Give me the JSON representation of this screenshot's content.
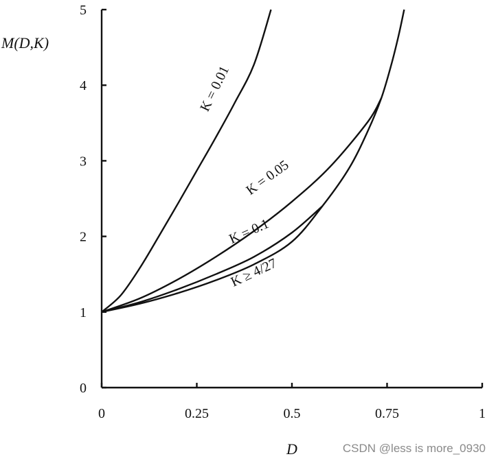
{
  "chart_data": {
    "type": "line",
    "title": "",
    "xlabel": "D",
    "ylabel": "M(D,K)",
    "xlim": [
      0,
      1
    ],
    "ylim": [
      0,
      5
    ],
    "x_ticks": [
      {
        "value": 0,
        "label": "0"
      },
      {
        "value": 0.25,
        "label": "0.25"
      },
      {
        "value": 0.5,
        "label": "0.5"
      },
      {
        "value": 0.75,
        "label": "0.75"
      },
      {
        "value": 1,
        "label": "1"
      }
    ],
    "y_ticks": [
      {
        "value": 0,
        "label": "0"
      },
      {
        "value": 1,
        "label": "1"
      },
      {
        "value": 2,
        "label": "2"
      },
      {
        "value": 3,
        "label": "3"
      },
      {
        "value": 4,
        "label": "4"
      },
      {
        "value": 5,
        "label": "5"
      }
    ],
    "grid": false,
    "legend": "none",
    "series": [
      {
        "name": "K = 0.01",
        "x": [
          0,
          0.05,
          0.1,
          0.15,
          0.2,
          0.25,
          0.3,
          0.35,
          0.4,
          0.445
        ],
        "y": [
          1.0,
          1.22,
          1.58,
          2.0,
          2.43,
          2.87,
          3.31,
          3.77,
          4.27,
          5.0
        ]
      },
      {
        "name": "K = 0.05",
        "x": [
          0,
          0.1,
          0.2,
          0.3,
          0.4,
          0.5,
          0.6,
          0.7,
          0.735
        ],
        "y": [
          1.0,
          1.18,
          1.43,
          1.73,
          2.07,
          2.46,
          2.92,
          3.52,
          3.83
        ]
      },
      {
        "name": "K = 0.1",
        "x": [
          0,
          0.1,
          0.2,
          0.3,
          0.4,
          0.5,
          0.58
        ],
        "y": [
          1.0,
          1.13,
          1.3,
          1.5,
          1.73,
          2.05,
          2.4
        ]
      },
      {
        "name": "K ≥ 4/27",
        "x": [
          0,
          0.1,
          0.2,
          0.3,
          0.4,
          0.5,
          0.58,
          0.65,
          0.7,
          0.735,
          0.76,
          0.78,
          0.795
        ],
        "y": [
          1.0,
          1.11,
          1.25,
          1.42,
          1.63,
          1.93,
          2.4,
          2.9,
          3.4,
          3.83,
          4.25,
          4.65,
          5.0
        ]
      }
    ],
    "annotations": [
      {
        "series": "K = 0.01",
        "text": "K = 0.01"
      },
      {
        "series": "K = 0.05",
        "text": "K = 0.05"
      },
      {
        "series": "K = 0.1",
        "text": "K = 0.1"
      },
      {
        "series": "K ≥ 4/27",
        "text": "K ≥ 4/27"
      }
    ]
  },
  "watermark": "CSDN @less is more_0930"
}
